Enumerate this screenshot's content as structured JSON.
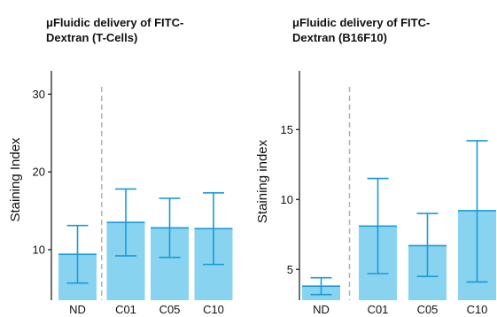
{
  "chart_data": [
    {
      "type": "bar",
      "title_line1": "μFluidic delivery of FITC-",
      "title_line2": "Dextran (T-Cells)",
      "xlabel": "",
      "ylabel": "Staining Index",
      "categories": [
        "ND",
        "C01",
        "C05",
        "C10"
      ],
      "values": [
        9.4,
        13.5,
        12.8,
        12.7
      ],
      "error_low": [
        5.7,
        9.2,
        9.0,
        8.1
      ],
      "error_high": [
        13.1,
        17.8,
        16.6,
        17.3
      ],
      "ylim": [
        3.5,
        33
      ],
      "yticks": [
        10,
        20,
        30
      ],
      "separator_after_index": 0,
      "bar_color": "#87d3f0",
      "error_color": "#1a9ad6",
      "separator_color": "#b5b5b5",
      "grid": false
    },
    {
      "type": "bar",
      "title_line1": "μFluidic delivery of FITC-",
      "title_line2": "Dextran (B16F10)",
      "xlabel": "",
      "ylabel": "Staining index",
      "categories": [
        "ND",
        "C01",
        "C05",
        "C10"
      ],
      "values": [
        3.8,
        8.1,
        6.7,
        9.2
      ],
      "error_low": [
        3.2,
        4.7,
        4.5,
        4.1
      ],
      "error_high": [
        4.4,
        11.5,
        9.0,
        14.2
      ],
      "ylim": [
        2.8,
        19.2
      ],
      "yticks": [
        5,
        10,
        15
      ],
      "separator_after_index": 0,
      "bar_color": "#87d3f0",
      "error_color": "#1a9ad6",
      "separator_color": "#b5b5b5",
      "grid": false
    }
  ]
}
